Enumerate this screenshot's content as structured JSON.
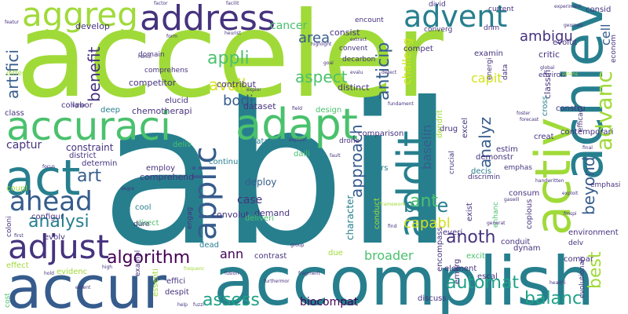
{
  "background": "#ffffff",
  "palette": {
    "dark_purple": "#440154",
    "indigo": "#46337e",
    "blue": "#365c8d",
    "teal": "#277f8e",
    "sea": "#1fa187",
    "green": "#4ac16d",
    "lime": "#a0da39",
    "yellow": "#d3e21b"
  },
  "words": [
    {
      "text": "abil",
      "color": "#277f8e"
    },
    {
      "text": "acceler",
      "color": "#a0da39"
    },
    {
      "text": "accomplish",
      "color": "#277f8e"
    },
    {
      "text": "accur",
      "color": "#365c8d"
    },
    {
      "text": "accuraci",
      "color": "#4ac16d"
    },
    {
      "text": "address",
      "color": "#46337e"
    },
    {
      "text": "advent",
      "color": "#277f8e"
    },
    {
      "text": "aggreg",
      "color": "#a0da39"
    },
    {
      "text": "achiev",
      "color": "#277f8e"
    },
    {
      "text": "activ",
      "color": "#a0da39"
    },
    {
      "text": "adapt",
      "color": "#4ac16d"
    },
    {
      "text": "act",
      "color": "#277f8e"
    },
    {
      "text": "addit",
      "color": "#277f8e"
    },
    {
      "text": "adjust",
      "color": "#46337e"
    },
    {
      "text": "ahead",
      "color": "#365c8d"
    },
    {
      "text": "applic",
      "color": "#365c8d"
    },
    {
      "text": "advanc",
      "color": "#a0da39"
    },
    {
      "text": "analysi",
      "color": "#277f8e"
    },
    {
      "text": "algorithm",
      "color": "#440154"
    },
    {
      "text": "assess",
      "color": "#1fa187"
    },
    {
      "text": "automat",
      "color": "#1fa187"
    },
    {
      "text": "balanc",
      "color": "#1fa187"
    },
    {
      "text": "anoth",
      "color": "#46337e"
    },
    {
      "text": "best",
      "color": "#a0da39"
    },
    {
      "text": "beyond",
      "color": "#365c8d"
    },
    {
      "text": "base",
      "color": "#277f8e"
    },
    {
      "text": "appli",
      "color": "#4ac16d"
    },
    {
      "text": "avail",
      "color": "#d3e21b"
    },
    {
      "text": "aspect",
      "color": "#4ac16d"
    },
    {
      "text": "anticip",
      "color": "#365c8d"
    },
    {
      "text": "approach",
      "color": "#365c8d"
    },
    {
      "text": "analyz",
      "color": "#365c8d"
    },
    {
      "text": "ambigu",
      "color": "#46337e"
    },
    {
      "text": "area",
      "color": "#365c8d"
    },
    {
      "text": "benefit",
      "color": "#46337e"
    },
    {
      "text": "bodi",
      "color": "#365c8d"
    },
    {
      "text": "art",
      "color": "#365c8d"
    },
    {
      "text": "ant",
      "color": "#4ac16d"
    },
    {
      "text": "ann",
      "color": "#440154"
    },
    {
      "text": "artifici",
      "color": "#365c8d"
    },
    {
      "text": "capabl",
      "color": "#d3e21b"
    },
    {
      "text": "capit",
      "color": "#d3e21b"
    },
    {
      "text": "baselin",
      "color": "#365c8d"
    },
    {
      "text": "cell",
      "color": "#365c8d"
    },
    {
      "text": "broader",
      "color": "#4ac16d"
    },
    {
      "text": "biocompat",
      "color": "#440154"
    },
    {
      "text": "case",
      "color": "#46337e"
    },
    {
      "text": "cancer",
      "color": "#4ac16d"
    },
    {
      "text": "challeng",
      "color": "#d3e21b"
    },
    {
      "text": "captur",
      "color": "#46337e"
    },
    {
      "text": "character",
      "color": "#277f8e"
    },
    {
      "text": "deploy",
      "color": "#365c8d"
    },
    {
      "text": "constraint",
      "color": "#46337e"
    },
    {
      "text": "chemotherapi",
      "color": "#46337e"
    },
    {
      "text": "competitor",
      "color": "#46337e"
    },
    {
      "text": "comprehend",
      "color": "#46337e"
    },
    {
      "text": "convolut",
      "color": "#46337e"
    },
    {
      "text": "demand",
      "color": "#46337e"
    },
    {
      "text": "dataset",
      "color": "#46337e"
    },
    {
      "text": "develop",
      "color": "#46337e"
    },
    {
      "text": "contribut",
      "color": "#46337e"
    },
    {
      "text": "distinct",
      "color": "#46337e"
    },
    {
      "text": "consist",
      "color": "#46337e"
    },
    {
      "text": "comparison",
      "color": "#46337e"
    },
    {
      "text": "classifi",
      "color": "#46337e"
    },
    {
      "text": "critic",
      "color": "#46337e"
    },
    {
      "text": "constru",
      "color": "#46337e"
    },
    {
      "text": "consid",
      "color": "#46337e"
    },
    {
      "text": "consum",
      "color": "#46337e"
    },
    {
      "text": "conduit",
      "color": "#46337e"
    },
    {
      "text": "compet",
      "color": "#46337e"
    },
    {
      "text": "examin",
      "color": "#46337e"
    },
    {
      "text": "exist",
      "color": "#46337e"
    },
    {
      "text": "discuss",
      "color": "#46337e"
    },
    {
      "text": "drug",
      "color": "#46337e"
    },
    {
      "text": "dynam",
      "color": "#46337e"
    },
    {
      "text": "element",
      "color": "#46337e"
    },
    {
      "text": "encompass",
      "color": "#46337e"
    },
    {
      "text": "environment",
      "color": "#46337e"
    },
    {
      "text": "everi",
      "color": "#46337e"
    },
    {
      "text": "demonstr",
      "color": "#46337e"
    },
    {
      "text": "creat",
      "color": "#46337e"
    },
    {
      "text": "copious",
      "color": "#46337e"
    },
    {
      "text": "contemporari",
      "color": "#46337e"
    },
    {
      "text": "evolut",
      "color": "#46337e"
    },
    {
      "text": "collabor",
      "color": "#46337e"
    },
    {
      "text": "compar",
      "color": "#46337e"
    },
    {
      "text": "conduct",
      "color": "#a0da39"
    },
    {
      "text": "datastream",
      "color": "#277f8e"
    },
    {
      "text": "continu",
      "color": "#277f8e"
    },
    {
      "text": "cool",
      "color": "#277f8e"
    },
    {
      "text": "dead",
      "color": "#277f8e"
    },
    {
      "text": "deep",
      "color": "#277f8e"
    },
    {
      "text": "decis",
      "color": "#277f8e"
    },
    {
      "text": "divers",
      "color": "#277f8e"
    },
    {
      "text": "due",
      "color": "#a0da39"
    },
    {
      "text": "daili",
      "color": "#4ac16d"
    },
    {
      "text": "design",
      "color": "#4ac16d"
    },
    {
      "text": "deliv",
      "color": "#4ac16d"
    },
    {
      "text": "deliveri",
      "color": "#4ac16d"
    },
    {
      "text": "direct",
      "color": "#4ac16d"
    },
    {
      "text": "employ",
      "color": "#46337e"
    },
    {
      "text": "elucid",
      "color": "#46337e"
    },
    {
      "text": "estim",
      "color": "#46337e"
    },
    {
      "text": "excel",
      "color": "#46337e"
    },
    {
      "text": "excit",
      "color": "#4ac16d"
    },
    {
      "text": "escal",
      "color": "#46337e"
    },
    {
      "text": "emerg",
      "color": "#46337e"
    },
    {
      "text": "effici",
      "color": "#46337e"
    },
    {
      "text": "despit",
      "color": "#46337e"
    },
    {
      "text": "essenti",
      "color": "#a0da39"
    },
    {
      "text": "evidenc",
      "color": "#a0da39"
    },
    {
      "text": "contrast",
      "color": "#46337e"
    },
    {
      "text": "configur",
      "color": "#46337e"
    },
    {
      "text": "coloni",
      "color": "#46337e"
    },
    {
      "text": "district",
      "color": "#46337e"
    },
    {
      "text": "determin",
      "color": "#46337e"
    },
    {
      "text": "coupl",
      "color": "#a0da39"
    },
    {
      "text": "evolv",
      "color": "#46337e"
    },
    {
      "text": "effect",
      "color": "#a0da39"
    },
    {
      "text": "cost",
      "color": "#4ac16d"
    },
    {
      "text": "exampl",
      "color": "#46337e"
    },
    {
      "text": "engag",
      "color": "#46337e"
    },
    {
      "text": "dure",
      "color": "#46337e"
    },
    {
      "text": "dendrit",
      "color": "#a0da39"
    },
    {
      "text": "cross",
      "color": "#277f8e"
    },
    {
      "text": "crucial",
      "color": "#46337e"
    },
    {
      "text": "drone",
      "color": "#46337e"
    },
    {
      "text": "discrimin",
      "color": "#46337e"
    },
    {
      "text": "enhanc",
      "color": "#4ac16d"
    },
    {
      "text": "environ",
      "color": "#46337e"
    },
    {
      "text": "data",
      "color": "#46337e"
    },
    {
      "text": "energi",
      "color": "#46337e"
    },
    {
      "text": "efficaci",
      "color": "#46337e"
    },
    {
      "text": "evolutionari",
      "color": "#46337e"
    },
    {
      "text": "emphasi",
      "color": "#46337e"
    },
    {
      "text": "emphas",
      "color": "#46337e"
    },
    {
      "text": "delv",
      "color": "#46337e"
    },
    {
      "text": "domain",
      "color": "#46337e"
    },
    {
      "text": "comprehens",
      "color": "#46337e"
    },
    {
      "text": "decarbon",
      "color": "#46337e"
    },
    {
      "text": "convent",
      "color": "#46337e"
    },
    {
      "text": "converg",
      "color": "#46337e"
    },
    {
      "text": "dnm",
      "color": "#46337e"
    },
    {
      "text": "divid",
      "color": "#46337e"
    },
    {
      "text": "current",
      "color": "#46337e"
    },
    {
      "text": "econom",
      "color": "#46337e"
    },
    {
      "text": "encount",
      "color": "#46337e"
    },
    {
      "text": "class",
      "color": "#46337e"
    },
    {
      "text": "differ",
      "color": "#a0da39"
    },
    {
      "text": "degre",
      "color": "#46337e"
    },
    {
      "text": "focus",
      "color": "#46337e"
    },
    {
      "text": "first",
      "color": "#46337e"
    },
    {
      "text": "find",
      "color": "#46337e"
    },
    {
      "text": "field",
      "color": "#46337e"
    },
    {
      "text": "final",
      "color": "#46337e"
    },
    {
      "text": "forecast",
      "color": "#46337e"
    },
    {
      "text": "foster",
      "color": "#46337e"
    },
    {
      "text": "explor",
      "color": "#46337e"
    },
    {
      "text": "factor",
      "color": "#46337e"
    },
    {
      "text": "facilit",
      "color": "#46337e"
    },
    {
      "text": "experiment",
      "color": "#46337e"
    },
    {
      "text": "featur",
      "color": "#46337e"
    },
    {
      "text": "form",
      "color": "#46337e"
    },
    {
      "text": "fundament",
      "color": "#46337e"
    },
    {
      "text": "furthermor",
      "color": "#46337e"
    },
    {
      "text": "fragment",
      "color": "#46337e"
    },
    {
      "text": "frequenc",
      "color": "#a0da39"
    },
    {
      "text": "framework",
      "color": "#a0da39"
    },
    {
      "text": "handl",
      "color": "#46337e"
    },
    {
      "text": "handwritten",
      "color": "#46337e"
    },
    {
      "text": "heurist",
      "color": "#46337e"
    },
    {
      "text": "highlight",
      "color": "#46337e"
    },
    {
      "text": "higher",
      "color": "#46337e"
    },
    {
      "text": "high",
      "color": "#46337e"
    },
    {
      "text": "hold",
      "color": "#46337e"
    },
    {
      "text": "help",
      "color": "#46337e"
    },
    {
      "text": "healthi",
      "color": "#46337e"
    },
    {
      "text": "group",
      "color": "#46337e"
    },
    {
      "text": "generat",
      "color": "#46337e"
    },
    {
      "text": "gaseill",
      "color": "#46337e"
    },
    {
      "text": "geometr",
      "color": "#46337e"
    },
    {
      "text": "fusion",
      "color": "#46337e"
    },
    {
      "text": "fuzzi",
      "color": "#46337e"
    },
    {
      "text": "extract",
      "color": "#46337e"
    },
    {
      "text": "explain",
      "color": "#46337e"
    },
    {
      "text": "exploit",
      "color": "#46337e"
    },
    {
      "text": "extens",
      "color": "#a0da39"
    },
    {
      "text": "extent",
      "color": "#46337e"
    },
    {
      "text": "fmspi",
      "color": "#46337e"
    },
    {
      "text": "goal",
      "color": "#46337e"
    },
    {
      "text": "global",
      "color": "#46337e"
    },
    {
      "text": "evalu",
      "color": "#46337e"
    },
    {
      "text": "detect",
      "color": "#46337e"
    },
    {
      "text": "fault",
      "color": "#46337e"
    },
    {
      "text": "expert",
      "color": "#46337e"
    }
  ]
}
